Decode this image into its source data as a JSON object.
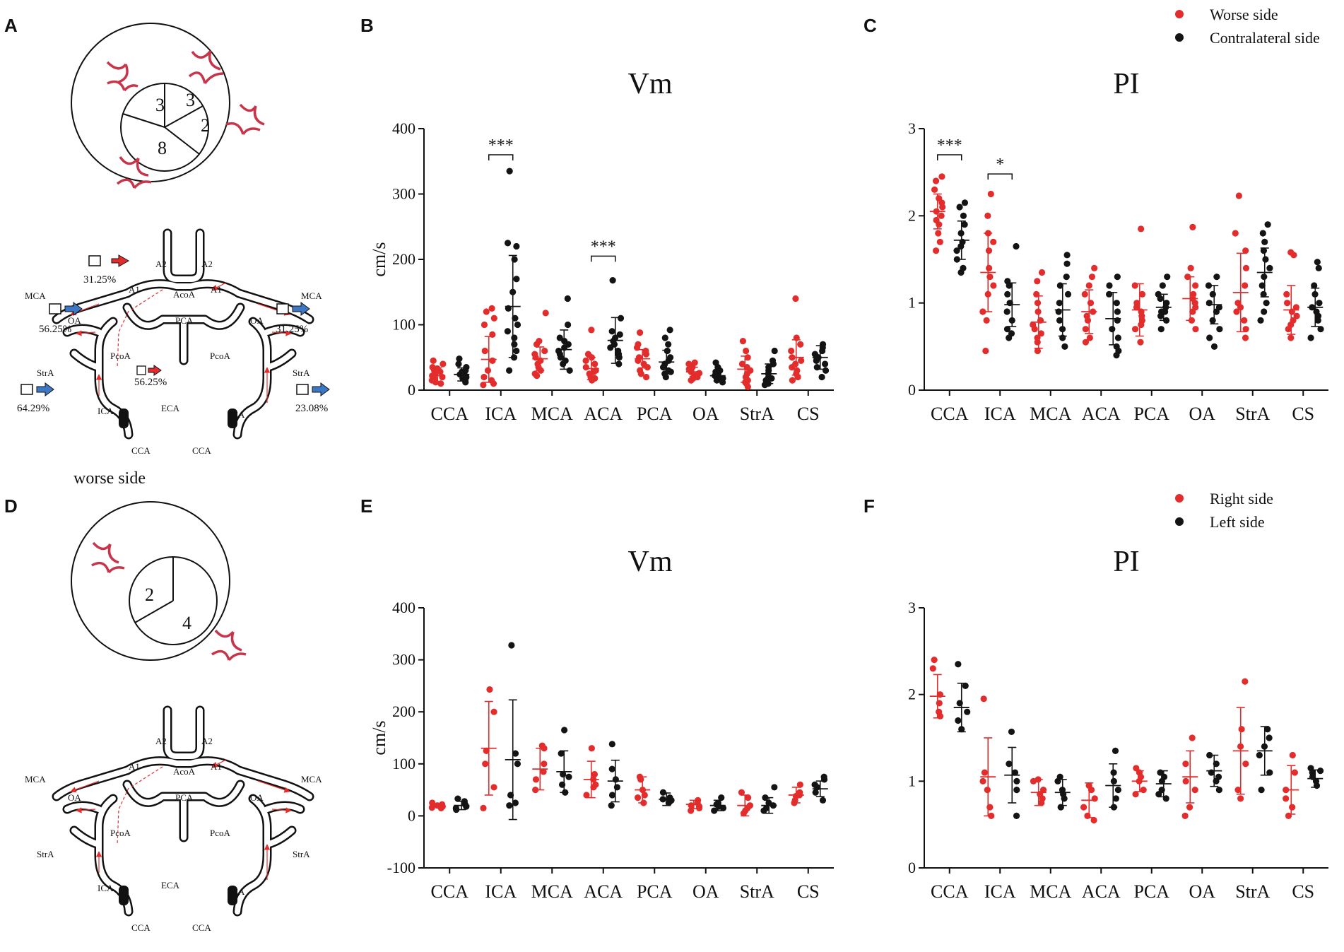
{
  "colors": {
    "red": "#e32d2d",
    "black": "#141414",
    "vessel_red": "#c8344a",
    "arrow_blue": "#3c78c3"
  },
  "panel_letters": [
    "A",
    "B",
    "C",
    "D",
    "E",
    "F"
  ],
  "legend_top": {
    "red": "Worse side",
    "black": "Contralateral side"
  },
  "legend_bottom": {
    "red": "Right side",
    "black": "Left side"
  },
  "diagram_labels": {
    "A2": "A2",
    "A1": "A1",
    "AcoA": "AcoA",
    "MCA": "MCA",
    "OA": "OA",
    "PCA": "PCA",
    "PcoA": "PcoA",
    "StrA": "StrA",
    "ICA": "ICA",
    "ECA": "ECA",
    "CCA": "CCA"
  },
  "diagram_A": {
    "pie_values": [
      "3",
      "3",
      "2",
      "8"
    ],
    "caption": "worse side",
    "percentages": {
      "left_a1": "31.25%",
      "left_mca": "56.25%",
      "pcoa": "56.25%",
      "left_stra": "64.29%",
      "right_mca": "31.25%",
      "right_stra": "23.08%"
    }
  },
  "diagram_D": {
    "pie_values": [
      "2",
      "4"
    ]
  },
  "chart_data": [
    {
      "id": "B",
      "type": "scatter",
      "title": "Vm",
      "ylabel": "cm/s",
      "xlabel": "",
      "ylim": [
        0,
        400
      ],
      "yticks": [
        "0",
        "100",
        "200",
        "300",
        "400"
      ],
      "categories": [
        "CCA",
        "ICA",
        "MCA",
        "ACA",
        "PCA",
        "OA",
        "StrA",
        "CS"
      ],
      "significance": [
        {
          "category": "ICA",
          "label": "***",
          "y": 360
        },
        {
          "category": "ACA",
          "label": "***",
          "y": 205
        }
      ],
      "series": [
        {
          "name": "Worse side",
          "color": "red",
          "points": [
            [
              15,
              18,
              22,
              25,
              30,
              35,
              40,
              45,
              12,
              20,
              28,
              10,
              33
            ],
            [
              10,
              15,
              20,
              30,
              45,
              60,
              85,
              100,
              110,
              120,
              125,
              8
            ],
            [
              25,
              30,
              35,
              40,
              45,
              50,
              55,
              60,
              70,
              75,
              118,
              22
            ],
            [
              15,
              20,
              25,
              30,
              35,
              40,
              45,
              50,
              55,
              92,
              18,
              28
            ],
            [
              25,
              30,
              35,
              40,
              45,
              50,
              55,
              60,
              65,
              70,
              88,
              20
            ],
            [
              18,
              20,
              22,
              25,
              28,
              30,
              32,
              35,
              40,
              42,
              15,
              26
            ],
            [
              10,
              15,
              20,
              25,
              30,
              35,
              40,
              50,
              60,
              75,
              5,
              12
            ],
            [
              15,
              25,
              30,
              35,
              40,
              45,
              50,
              60,
              70,
              80,
              140,
              20
            ]
          ],
          "mean": [
            22,
            47,
            48,
            33,
            48,
            28,
            32,
            50
          ],
          "sd": [
            12,
            35,
            18,
            17,
            14,
            7,
            20,
            27
          ]
        },
        {
          "name": "Contralateral side",
          "color": "black",
          "points": [
            [
              15,
              18,
              20,
              22,
              25,
              28,
              30,
              35,
              40,
              48,
              12,
              24
            ],
            [
              30,
              50,
              60,
              70,
              80,
              100,
              110,
              125,
              150,
              170,
              200,
              220,
              225,
              335,
              90
            ],
            [
              30,
              40,
              50,
              55,
              60,
              65,
              70,
              75,
              80,
              100,
              140,
              45
            ],
            [
              40,
              50,
              60,
              65,
              70,
              75,
              80,
              85,
              90,
              110,
              168,
              55
            ],
            [
              20,
              25,
              30,
              35,
              40,
              45,
              50,
              60,
              70,
              80,
              92,
              28
            ],
            [
              12,
              15,
              18,
              20,
              22,
              25,
              28,
              30,
              35,
              42,
              16,
              24
            ],
            [
              10,
              15,
              20,
              25,
              30,
              35,
              40,
              45,
              60,
              8,
              18
            ],
            [
              20,
              30,
              40,
              45,
              50,
              55,
              60,
              65,
              70,
              35,
              48
            ]
          ],
          "mean": [
            24,
            128,
            62,
            76,
            43,
            22,
            25,
            50
          ],
          "sd": [
            10,
            78,
            30,
            35,
            18,
            8,
            15,
            18
          ]
        }
      ]
    },
    {
      "id": "C",
      "type": "scatter",
      "title": "PI",
      "ylabel": "",
      "xlabel": "",
      "ylim": [
        0,
        3
      ],
      "yticks": [
        "0",
        "1",
        "2",
        "3"
      ],
      "categories": [
        "CCA",
        "ICA",
        "MCA",
        "ACA",
        "PCA",
        "OA",
        "StrA",
        "CS"
      ],
      "significance": [
        {
          "category": "CCA",
          "label": "***",
          "y": 2.7
        },
        {
          "category": "ICA",
          "label": "*",
          "y": 2.48
        }
      ],
      "series": [
        {
          "name": "Worse side",
          "color": "red",
          "points": [
            [
              1.7,
              1.8,
              1.9,
              2.0,
              2.05,
              2.1,
              2.2,
              2.3,
              2.4,
              1.6,
              2.45,
              2.15,
              1.95
            ],
            [
              0.45,
              0.8,
              0.9,
              1.1,
              1.2,
              1.4,
              1.6,
              1.8,
              2.0,
              2.25,
              1.3,
              1.7
            ],
            [
              0.45,
              0.55,
              0.6,
              0.7,
              0.75,
              0.8,
              0.9,
              1.0,
              1.1,
              1.25,
              1.35,
              0.65
            ],
            [
              0.55,
              0.6,
              0.7,
              0.8,
              0.9,
              1.0,
              1.1,
              1.2,
              1.3,
              1.4,
              0.85
            ],
            [
              0.55,
              0.7,
              0.8,
              0.85,
              0.9,
              0.95,
              1.0,
              1.1,
              1.2,
              1.85,
              0.75
            ],
            [
              0.7,
              0.8,
              0.9,
              1.0,
              1.05,
              1.1,
              1.2,
              1.3,
              1.4,
              1.87,
              0.95
            ],
            [
              0.6,
              0.7,
              0.8,
              0.9,
              1.0,
              1.2,
              1.4,
              1.6,
              1.8,
              2.23,
              0.95
            ],
            [
              0.6,
              0.7,
              0.75,
              0.8,
              0.9,
              0.95,
              1.0,
              1.1,
              1.55,
              1.58,
              0.85
            ]
          ],
          "mean": [
            2.05,
            1.35,
            0.78,
            0.9,
            0.92,
            1.05,
            1.12,
            0.92
          ],
          "sd": [
            0.2,
            0.45,
            0.3,
            0.25,
            0.3,
            0.25,
            0.45,
            0.28
          ]
        },
        {
          "name": "Contralateral side",
          "color": "black",
          "points": [
            [
              1.35,
              1.4,
              1.5,
              1.6,
              1.7,
              1.8,
              1.9,
              2.0,
              2.1,
              2.15,
              1.65
            ],
            [
              0.6,
              0.7,
              0.8,
              0.9,
              1.0,
              1.1,
              1.2,
              1.25,
              1.65,
              0.65
            ],
            [
              0.5,
              0.6,
              0.7,
              0.8,
              0.9,
              1.0,
              1.1,
              1.2,
              1.3,
              1.45,
              1.55
            ],
            [
              0.4,
              0.5,
              0.6,
              0.7,
              0.8,
              0.9,
              1.0,
              1.1,
              1.2,
              1.3,
              0.45
            ],
            [
              0.7,
              0.8,
              0.85,
              0.9,
              0.95,
              1.0,
              1.05,
              1.1,
              1.2,
              1.3,
              0.9
            ],
            [
              0.5,
              0.6,
              0.7,
              0.8,
              0.9,
              1.0,
              1.1,
              1.2,
              1.3,
              0.95
            ],
            [
              0.8,
              0.9,
              1.0,
              1.1,
              1.2,
              1.3,
              1.4,
              1.5,
              1.6,
              1.7,
              1.8,
              1.9
            ],
            [
              0.6,
              0.7,
              0.8,
              0.9,
              0.95,
              1.0,
              1.1,
              1.2,
              1.4,
              1.47,
              0.85
            ]
          ],
          "mean": [
            1.72,
            0.98,
            0.92,
            0.82,
            0.95,
            0.98,
            1.35,
            0.95
          ],
          "sd": [
            0.22,
            0.25,
            0.3,
            0.3,
            0.15,
            0.22,
            0.28,
            0.22
          ]
        }
      ]
    },
    {
      "id": "E",
      "type": "scatter",
      "title": "Vm",
      "ylabel": "cm/s",
      "xlabel": "",
      "ylim": [
        -100,
        400
      ],
      "yticks": [
        "-100",
        "0",
        "100",
        "200",
        "300",
        "400"
      ],
      "categories": [
        "CCA",
        "ICA",
        "MCA",
        "ACA",
        "PCA",
        "OA",
        "StrA",
        "CS"
      ],
      "significance": [],
      "series": [
        {
          "name": "Right side",
          "color": "red",
          "points": [
            [
              15,
              18,
              20,
              22,
              25,
              16
            ],
            [
              15,
              55,
              125,
              200,
              243,
              100
            ],
            [
              50,
              70,
              85,
              100,
              130,
              135
            ],
            [
              40,
              55,
              70,
              80,
              130,
              60
            ],
            [
              25,
              35,
              50,
              70,
              75,
              40
            ],
            [
              10,
              15,
              20,
              25,
              30,
              18
            ],
            [
              5,
              10,
              15,
              35,
              45,
              20
            ],
            [
              25,
              30,
              40,
              45,
              60,
              38
            ]
          ],
          "mean": [
            20,
            130,
            90,
            70,
            50,
            22,
            20,
            40
          ],
          "sd": [
            3,
            90,
            40,
            35,
            25,
            8,
            20,
            15
          ]
        },
        {
          "name": "Left side",
          "color": "black",
          "points": [
            [
              12,
              15,
              18,
              22,
              28,
              33
            ],
            [
              20,
              25,
              40,
              100,
              120,
              328
            ],
            [
              45,
              60,
              75,
              80,
              120,
              165
            ],
            [
              20,
              40,
              55,
              70,
              90,
              138
            ],
            [
              25,
              28,
              32,
              35,
              45,
              30
            ],
            [
              10,
              15,
              18,
              22,
              25,
              35
            ],
            [
              10,
              15,
              20,
              25,
              35,
              55
            ],
            [
              30,
              45,
              55,
              60,
              70,
              75
            ]
          ],
          "mean": [
            20,
            108,
            85,
            67,
            32,
            20,
            20,
            52
          ],
          "sd": [
            8,
            115,
            40,
            40,
            12,
            10,
            15,
            15
          ]
        }
      ]
    },
    {
      "id": "F",
      "type": "scatter",
      "title": "PI",
      "ylabel": "",
      "xlabel": "",
      "ylim": [
        0,
        3
      ],
      "yticks": [
        "0",
        "1",
        "2",
        "3"
      ],
      "categories": [
        "CCA",
        "ICA",
        "MCA",
        "ACA",
        "PCA",
        "OA",
        "StrA",
        "CS"
      ],
      "significance": [],
      "series": [
        {
          "name": "Right side",
          "color": "red",
          "points": [
            [
              1.75,
              1.8,
              1.9,
              2.0,
              2.3,
              2.4
            ],
            [
              0.6,
              0.7,
              0.9,
              1.0,
              1.1,
              1.95
            ],
            [
              0.75,
              0.8,
              0.85,
              0.9,
              1.0,
              1.02
            ],
            [
              0.55,
              0.6,
              0.7,
              0.8,
              0.9,
              0.95
            ],
            [
              0.85,
              0.9,
              1.0,
              1.05,
              1.1,
              1.15
            ],
            [
              0.6,
              0.7,
              0.9,
              1.0,
              1.2,
              1.5
            ],
            [
              0.8,
              0.9,
              1.2,
              1.4,
              1.6,
              2.15
            ],
            [
              0.6,
              0.7,
              0.8,
              0.9,
              1.1,
              1.3
            ]
          ],
          "mean": [
            1.98,
            1.05,
            0.87,
            0.78,
            1.0,
            1.05,
            1.35,
            0.9
          ],
          "sd": [
            0.25,
            0.45,
            0.15,
            0.2,
            0.12,
            0.3,
            0.5,
            0.28
          ]
        },
        {
          "name": "Left side",
          "color": "black",
          "points": [
            [
              1.6,
              1.7,
              1.8,
              1.9,
              2.1,
              2.35
            ],
            [
              0.6,
              0.9,
              1.0,
              1.1,
              1.2,
              1.57
            ],
            [
              0.7,
              0.8,
              0.85,
              0.9,
              1.0,
              1.05
            ],
            [
              0.7,
              0.8,
              0.9,
              1.0,
              1.1,
              1.35
            ],
            [
              0.8,
              0.85,
              0.9,
              1.0,
              1.05,
              1.1
            ],
            [
              0.9,
              1.0,
              1.05,
              1.1,
              1.2,
              1.3
            ],
            [
              0.9,
              1.1,
              1.3,
              1.4,
              1.5,
              1.6
            ],
            [
              0.95,
              1.0,
              1.05,
              1.1,
              1.12,
              1.15
            ]
          ],
          "mean": [
            1.85,
            1.07,
            0.87,
            0.95,
            0.97,
            1.12,
            1.35,
            1.03
          ],
          "sd": [
            0.28,
            0.32,
            0.15,
            0.25,
            0.15,
            0.18,
            0.28,
            0.1
          ]
        }
      ]
    }
  ]
}
